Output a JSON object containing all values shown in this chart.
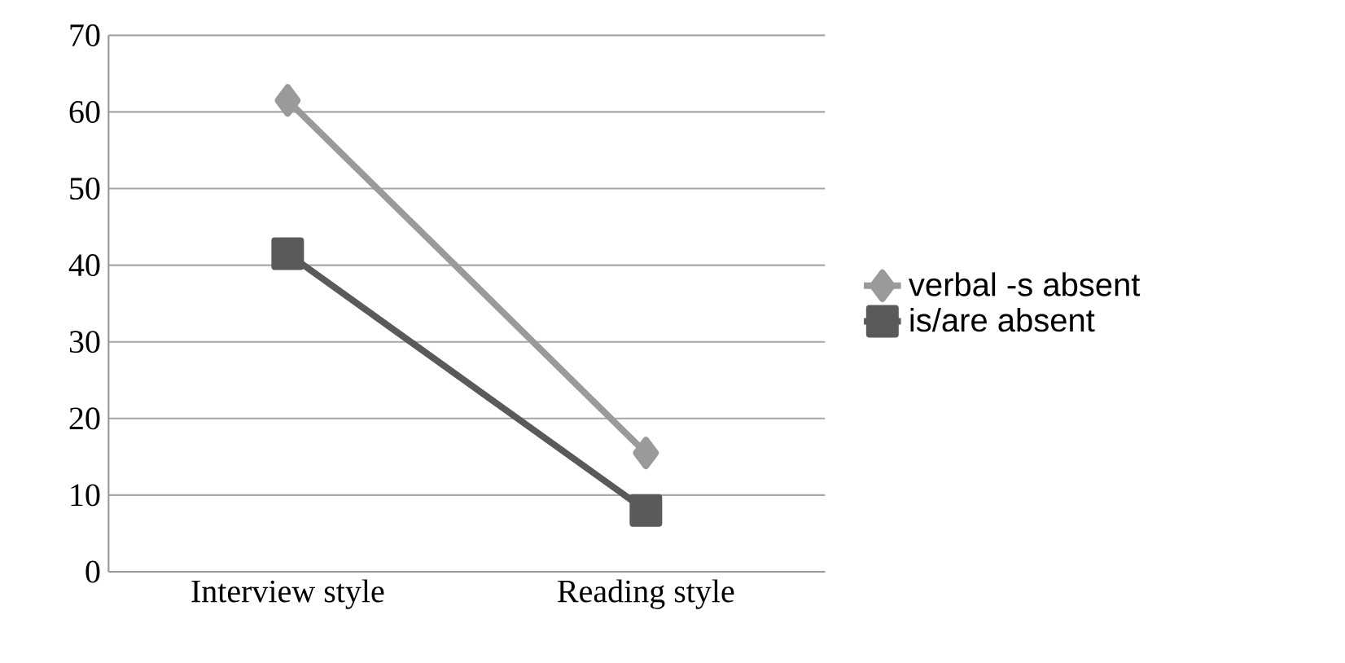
{
  "chart_data": {
    "type": "line",
    "categories": [
      "Interview style",
      "Reading style"
    ],
    "series": [
      {
        "name": "verbal -s absent",
        "color": "#9a9a9a",
        "values": [
          61.5,
          15.5
        ],
        "marker": "diamond"
      },
      {
        "name": "is/are absent",
        "color": "#5a5a5a",
        "values": [
          41.5,
          8
        ],
        "marker": "square"
      }
    ],
    "ylim": [
      0,
      70
    ],
    "yticks": [
      0,
      10,
      20,
      30,
      40,
      50,
      60,
      70
    ],
    "grid": "y",
    "legend": "right"
  }
}
